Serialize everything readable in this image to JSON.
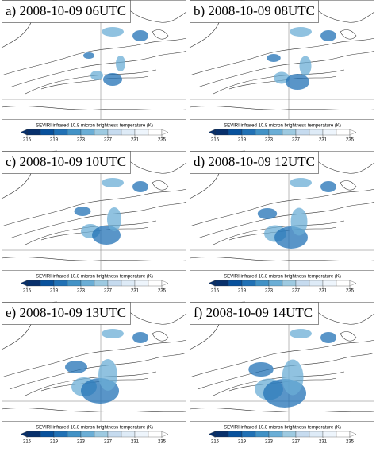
{
  "panels": [
    {
      "label": "a) 2008-10-09 06UTC"
    },
    {
      "label": "b) 2008-10-09 08UTC"
    },
    {
      "label": "c) 2008-10-09 10UTC"
    },
    {
      "label": "d) 2008-10-09 12UTC"
    },
    {
      "label": "e) 2008-10-09 13UTC"
    },
    {
      "label": "f) 2008-10-09 14UTC"
    }
  ],
  "colorbar": {
    "title": "SEVIRI infrared 10.8 micron brightness temperature (K)",
    "range": [
      215,
      235
    ],
    "ticks": [
      215,
      219,
      223,
      227,
      231,
      235
    ],
    "colors": [
      "#08306b",
      "#08519c",
      "#2171b5",
      "#4292c6",
      "#6baed6",
      "#9ecae1",
      "#c6dbef",
      "#deebf7",
      "#eef5fc",
      "#ffffff"
    ],
    "under_color": "#08306b",
    "over_color": "#ffffff"
  }
}
